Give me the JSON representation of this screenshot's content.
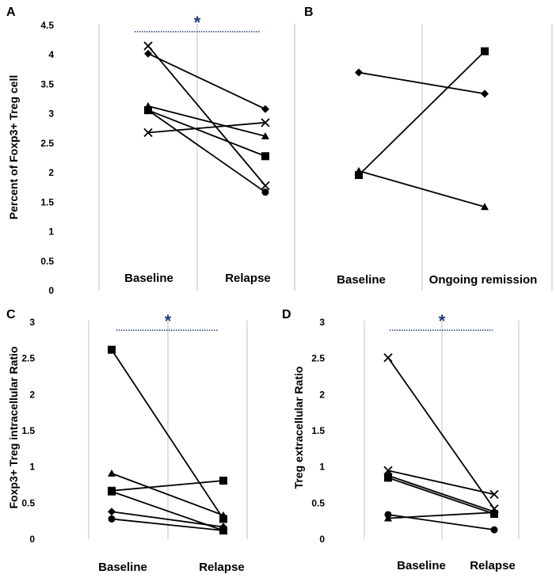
{
  "colors": {
    "lines": "#000000",
    "grid": "#cccccc",
    "significance": "#1f3a7a"
  },
  "chart_data": [
    {
      "panel": "A",
      "type": "line",
      "ylabel": "Percent of Foxp3+ Treg cell",
      "categories": [
        "Baseline",
        "Relapse"
      ],
      "yticks": [
        "0",
        "0.5",
        "1",
        "1.5",
        "2",
        "2.5",
        "3",
        "3.5",
        "4",
        "4.5"
      ],
      "ylim": [
        0,
        4.5
      ],
      "significance": "*",
      "series": [
        {
          "name": "diamond",
          "marker": "diamond",
          "values": [
            4.02,
            3.08
          ]
        },
        {
          "name": "x-upper",
          "marker": "x",
          "values": [
            4.15,
            1.78
          ]
        },
        {
          "name": "triangle",
          "marker": "triangle",
          "values": [
            3.13,
            2.62
          ]
        },
        {
          "name": "square",
          "marker": "square",
          "values": [
            3.06,
            2.28
          ]
        },
        {
          "name": "circle",
          "marker": "circle",
          "values": [
            3.06,
            1.67
          ]
        },
        {
          "name": "x-lower",
          "marker": "x",
          "values": [
            2.68,
            2.85
          ]
        }
      ]
    },
    {
      "panel": "B",
      "type": "line",
      "ylabel": "",
      "categories": [
        "Baseline",
        "Ongoing remission"
      ],
      "yticks": [],
      "ylim": [
        0,
        4.5
      ],
      "significance": "",
      "series": [
        {
          "name": "diamond",
          "marker": "diamond",
          "values": [
            3.7,
            3.34
          ]
        },
        {
          "name": "square",
          "marker": "square",
          "values": [
            1.96,
            4.06
          ]
        },
        {
          "name": "triangle",
          "marker": "triangle",
          "values": [
            2.03,
            1.42
          ]
        }
      ]
    },
    {
      "panel": "C",
      "type": "line",
      "ylabel": "Foxp3+ Treg intracellular Ratio",
      "categories": [
        "Baseline",
        "Relapse"
      ],
      "yticks": [
        "0",
        "0.5",
        "1",
        "1.5",
        "2",
        "2.5",
        "3"
      ],
      "ylim": [
        0,
        3
      ],
      "significance": "*",
      "series": [
        {
          "name": "square-high",
          "marker": "square",
          "values": [
            2.62,
            0.28
          ]
        },
        {
          "name": "triangle",
          "marker": "triangle",
          "values": [
            0.91,
            0.33
          ]
        },
        {
          "name": "square-mid",
          "marker": "square",
          "values": [
            0.67,
            0.81
          ]
        },
        {
          "name": "square-low",
          "marker": "square",
          "values": [
            0.66,
            0.12
          ]
        },
        {
          "name": "diamond",
          "marker": "diamond",
          "values": [
            0.38,
            0.17
          ]
        },
        {
          "name": "circle",
          "marker": "circle",
          "values": [
            0.28,
            0.12
          ]
        }
      ]
    },
    {
      "panel": "D",
      "type": "line",
      "ylabel": "Treg extracellular Ratio",
      "categories": [
        "Baseline",
        "Relapse"
      ],
      "yticks": [
        "0",
        "0.5",
        "1",
        "1.5",
        "2",
        "2.5",
        "3"
      ],
      "ylim": [
        0,
        3
      ],
      "significance": "*",
      "series": [
        {
          "name": "x-high",
          "marker": "x",
          "values": [
            2.51,
            0.42
          ]
        },
        {
          "name": "x-mid",
          "marker": "x",
          "values": [
            0.95,
            0.62
          ]
        },
        {
          "name": "square",
          "marker": "square",
          "values": [
            0.85,
            0.35
          ]
        },
        {
          "name": "diamond",
          "marker": "diamond",
          "values": [
            0.88,
            0.38
          ]
        },
        {
          "name": "circle-low",
          "marker": "circle",
          "values": [
            0.34,
            0.13
          ]
        },
        {
          "name": "triangle",
          "marker": "triangle",
          "values": [
            0.29,
            0.37
          ]
        }
      ]
    }
  ]
}
